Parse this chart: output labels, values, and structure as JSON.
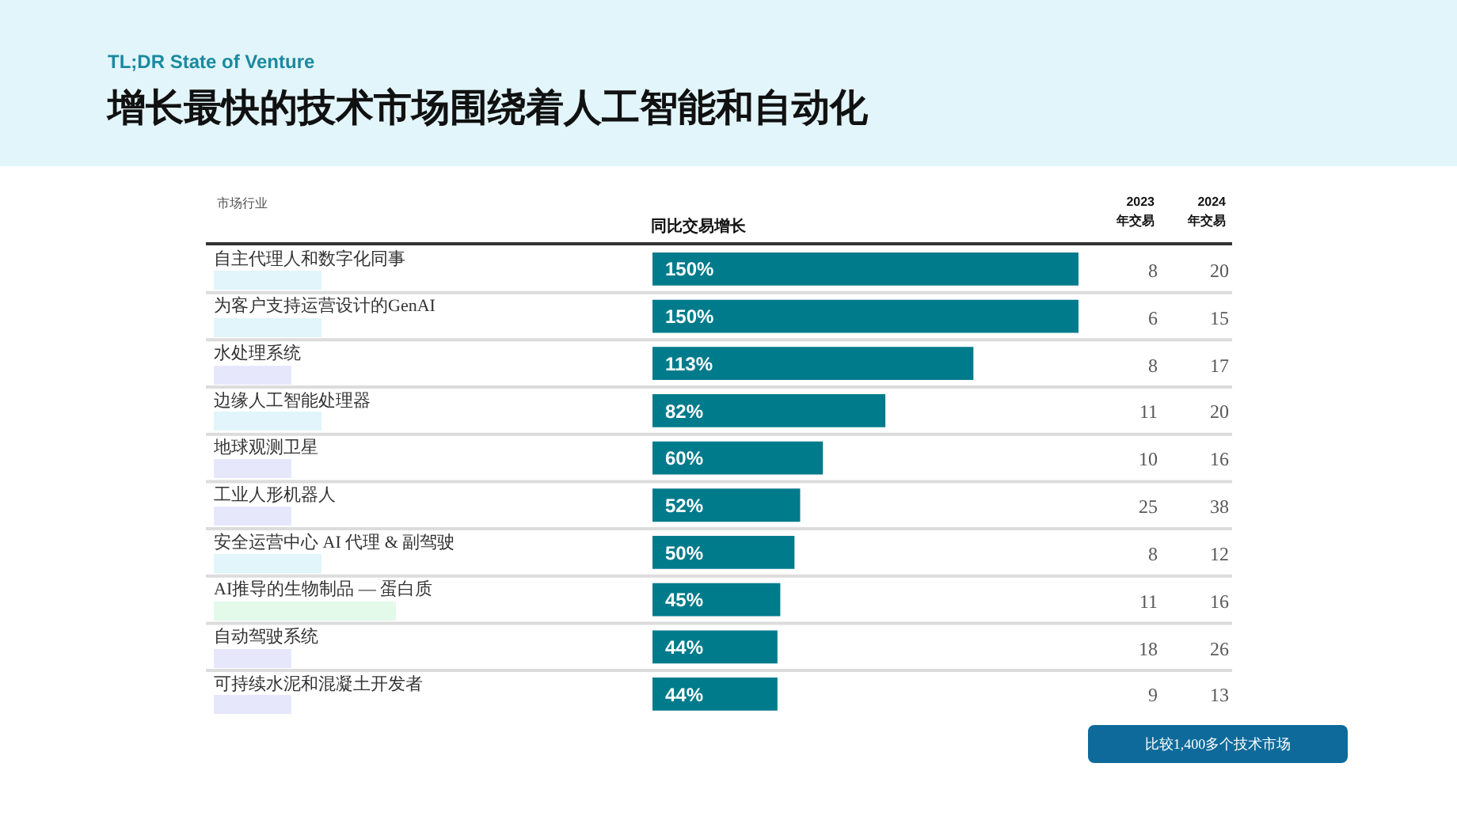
{
  "chart_data": [
    {
      "type": "bar",
      "orientation": "horizontal",
      "subtitle": "TL;DR State of Venture",
      "title": "增长最快的技术市场围绕着人工智能和自动化",
      "ylabel": "市场行业",
      "xlabel": "同比交易增长",
      "categories": [
        "自主代理人和数字化同事",
        "为客户支持运营设计的GenAI",
        "水处理系统",
        "边缘人工智能处理器",
        "地球观测卫星",
        "工业人形机器人",
        "安全运营中心 AI 代理 & 副驾驶",
        "AI推导的生物制品 — 蛋白质",
        "自动驾驶系统",
        "可持续水泥和混凝土开发者"
      ],
      "color": "#007b8c",
      "values": [
        150,
        150,
        113,
        82,
        60,
        52,
        50,
        45,
        44,
        44
      ],
      "value_labels": [
        "150%",
        "150%",
        "113%",
        "82%",
        "60%",
        "52%",
        "50%",
        "45%",
        "44%",
        "44%"
      ],
      "grid": "y",
      "legend": false,
      "tick_labels": "y",
      "annotations": [
        "比较1,400多个技术市场"
      ]
    },
    {
      "type": "other",
      "title": "2023\n年交易",
      "data_labels": true,
      "values": [
        8,
        6,
        8,
        11,
        10,
        25,
        8,
        11,
        18,
        9
      ]
    },
    {
      "type": "other",
      "title": "2024\n年交易",
      "data_labels": true,
      "values": [
        20,
        15,
        17,
        20,
        16,
        38,
        12,
        16,
        26,
        13
      ]
    }
  ]
}
